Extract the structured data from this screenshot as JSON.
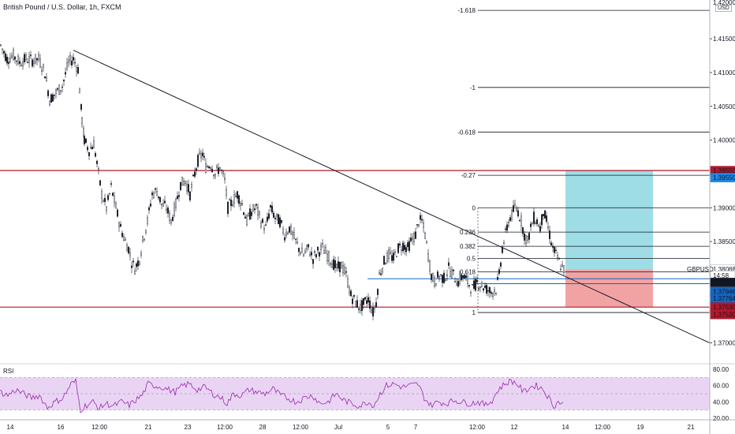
{
  "header": {
    "title": "British Pound / U.S. Dollar, 1h, FXCM",
    "currency": "USD",
    "top_price_partial": "1.42000"
  },
  "rsi": {
    "label": "RSI",
    "ticks": [
      "80.00",
      "60.00",
      "40.00",
      "20.00"
    ]
  },
  "colors": {
    "candle": "#131722",
    "support_line": "#b2182b",
    "fib_line": "#131722",
    "tp_zone": "#9fdde6",
    "sl_zone": "#f1a3a3",
    "rsi_line": "#9c27b0",
    "rsi_band": "#e9d5f3",
    "blue_level": "#1565c0"
  },
  "chart_data": {
    "type": "candlestick",
    "symbol": "GBPUSD",
    "timeframe": "1h",
    "ylim": [
      1.3675,
      1.4205
    ],
    "y_ticks": [
      "1.41500",
      "1.41000",
      "1.40500",
      "1.40000",
      "1.39500",
      "1.39000",
      "1.38500",
      "1.38000",
      "1.37500",
      "1.37000"
    ],
    "x_ticks": [
      "14",
      "16",
      "12:00",
      "21",
      "23",
      "12:00",
      "28",
      "12:00",
      "Jul",
      "5",
      "7",
      "12:00",
      "12",
      "14",
      "12:00",
      "19",
      "21"
    ],
    "fib_levels": [
      {
        "label": "-1.618",
        "price": 1.4192
      },
      {
        "label": "-1",
        "price": 1.4078
      },
      {
        "label": "-0.618",
        "price": 1.4012
      },
      {
        "label": "-0.27",
        "price": 1.3948
      },
      {
        "label": "0",
        "price": 1.39
      },
      {
        "label": "0.236",
        "price": 1.3864
      },
      {
        "label": "0.382",
        "price": 1.3843
      },
      {
        "label": "0.5",
        "price": 1.3825
      },
      {
        "label": "0.618",
        "price": 1.3805
      },
      {
        "label": "1",
        "price": 1.3745
      }
    ],
    "horizontal_levels": [
      1.3955,
      1.3753
    ],
    "blue_levels": [
      1.3795,
      1.3776
    ],
    "trendline": {
      "start": [
        "14",
        1.4133
      ],
      "end": [
        "19-21",
        1.37
      ]
    },
    "position": {
      "entry": 1.3809,
      "take_profit": 1.3955,
      "stop": 1.3753
    },
    "price_labels": [
      {
        "text": "1.39550",
        "price": 1.3955,
        "color": "#b2182b"
      },
      {
        "text": "1.39550",
        "price": 1.39445,
        "color": "#1e88e5"
      },
      {
        "text": "1.38088",
        "price": 1.3809,
        "color": "#ffffff",
        "text_color": "#131722"
      },
      {
        "text": "14:58",
        "price": 1.38,
        "color": "#ffffff",
        "text_color": "#131722"
      },
      {
        "text": "1.38085",
        "price": 1.37895,
        "color": "#131722"
      },
      {
        "text": "1.37946",
        "price": 1.3776,
        "color": "#1565c0"
      },
      {
        "text": "1.37764",
        "price": 1.3766,
        "color": "#1565c0"
      },
      {
        "text": "1.37530",
        "price": 1.3753,
        "color": "#b2182b"
      },
      {
        "text": "1.37530",
        "price": 1.3742,
        "color": "#b2182b"
      }
    ],
    "symbol_tag": {
      "text": "GBPUSD",
      "price": 1.3809
    },
    "price_path": [
      [
        0,
        1.414
      ],
      [
        8,
        1.412
      ],
      [
        16,
        1.4125
      ],
      [
        24,
        1.4115
      ],
      [
        32,
        1.412
      ],
      [
        40,
        1.4118
      ],
      [
        48,
        1.412
      ],
      [
        56,
        1.41
      ],
      [
        62,
        1.406
      ],
      [
        70,
        1.407
      ],
      [
        78,
        1.408
      ],
      [
        86,
        1.4115
      ],
      [
        92,
        1.412
      ],
      [
        98,
        1.4105
      ],
      [
        103,
        1.403
      ],
      [
        106,
        1.4
      ],
      [
        112,
        1.3985
      ],
      [
        118,
        1.3995
      ],
      [
        124,
        1.395
      ],
      [
        128,
        1.392
      ],
      [
        134,
        1.39
      ],
      [
        140,
        1.393
      ],
      [
        146,
        1.39
      ],
      [
        152,
        1.387
      ],
      [
        158,
        1.385
      ],
      [
        162,
        1.384
      ],
      [
        166,
        1.382
      ],
      [
        170,
        1.381
      ],
      [
        176,
        1.3825
      ],
      [
        180,
        1.385
      ],
      [
        186,
        1.388
      ],
      [
        192,
        1.392
      ],
      [
        198,
        1.3925
      ],
      [
        204,
        1.3905
      ],
      [
        210,
        1.39
      ],
      [
        216,
        1.388
      ],
      [
        222,
        1.3905
      ],
      [
        228,
        1.3935
      ],
      [
        234,
        1.394
      ],
      [
        240,
        1.392
      ],
      [
        246,
        1.395
      ],
      [
        250,
        1.397
      ],
      [
        256,
        1.398
      ],
      [
        260,
        1.396
      ],
      [
        266,
        1.3965
      ],
      [
        272,
        1.395
      ],
      [
        278,
        1.396
      ],
      [
        284,
        1.394
      ],
      [
        288,
        1.39
      ],
      [
        294,
        1.391
      ],
      [
        300,
        1.392
      ],
      [
        306,
        1.3905
      ],
      [
        312,
        1.388
      ],
      [
        318,
        1.3895
      ],
      [
        324,
        1.39
      ],
      [
        330,
        1.388
      ],
      [
        336,
        1.387
      ],
      [
        342,
        1.39
      ],
      [
        348,
        1.3885
      ],
      [
        354,
        1.388
      ],
      [
        360,
        1.386
      ],
      [
        366,
        1.387
      ],
      [
        372,
        1.3855
      ],
      [
        378,
        1.384
      ],
      [
        384,
        1.383
      ],
      [
        390,
        1.384
      ],
      [
        396,
        1.3825
      ],
      [
        402,
        1.3835
      ],
      [
        408,
        1.384
      ],
      [
        414,
        1.383
      ],
      [
        420,
        1.382
      ],
      [
        426,
        1.381
      ],
      [
        432,
        1.3815
      ],
      [
        438,
        1.38
      ],
      [
        444,
        1.377
      ],
      [
        450,
        1.376
      ],
      [
        456,
        1.3752
      ],
      [
        462,
        1.376
      ],
      [
        466,
        1.3765
      ],
      [
        472,
        1.3745
      ],
      [
        476,
        1.376
      ],
      [
        480,
        1.38
      ],
      [
        486,
        1.382
      ],
      [
        492,
        1.383
      ],
      [
        498,
        1.3825
      ],
      [
        504,
        1.384
      ],
      [
        510,
        1.3845
      ],
      [
        516,
        1.384
      ],
      [
        520,
        1.385
      ],
      [
        526,
        1.386
      ],
      [
        530,
        1.388
      ],
      [
        534,
        1.388
      ],
      [
        538,
        1.386
      ],
      [
        542,
        1.383
      ],
      [
        546,
        1.38
      ],
      [
        550,
        1.379
      ],
      [
        556,
        1.38
      ],
      [
        562,
        1.3795
      ],
      [
        568,
        1.381
      ],
      [
        574,
        1.38
      ],
      [
        580,
        1.379
      ],
      [
        586,
        1.38
      ],
      [
        592,
        1.379
      ],
      [
        598,
        1.378
      ],
      [
        604,
        1.379
      ],
      [
        610,
        1.3785
      ],
      [
        616,
        1.378
      ],
      [
        622,
        1.3775
      ],
      [
        628,
        1.378
      ],
      [
        632,
        1.38
      ],
      [
        636,
        1.384
      ],
      [
        640,
        1.386
      ],
      [
        644,
        1.388
      ],
      [
        648,
        1.389
      ],
      [
        652,
        1.39
      ],
      [
        656,
        1.3895
      ],
      [
        660,
        1.388
      ],
      [
        664,
        1.386
      ],
      [
        668,
        1.385
      ],
      [
        672,
        1.387
      ],
      [
        676,
        1.3885
      ],
      [
        680,
        1.388
      ],
      [
        684,
        1.387
      ],
      [
        688,
        1.3895
      ],
      [
        692,
        1.388
      ],
      [
        696,
        1.386
      ],
      [
        700,
        1.384
      ],
      [
        704,
        1.383
      ],
      [
        708,
        1.382
      ],
      [
        712,
        1.381
      ],
      [
        716,
        1.3809
      ]
    ],
    "rsi_series": [
      [
        0,
        52
      ],
      [
        10,
        48
      ],
      [
        20,
        55
      ],
      [
        30,
        50
      ],
      [
        40,
        45
      ],
      [
        50,
        48
      ],
      [
        60,
        33
      ],
      [
        70,
        40
      ],
      [
        80,
        45
      ],
      [
        90,
        62
      ],
      [
        96,
        65
      ],
      [
        102,
        30
      ],
      [
        108,
        35
      ],
      [
        118,
        40
      ],
      [
        126,
        32
      ],
      [
        134,
        38
      ],
      [
        144,
        35
      ],
      [
        154,
        40
      ],
      [
        164,
        36
      ],
      [
        172,
        42
      ],
      [
        180,
        48
      ],
      [
        188,
        62
      ],
      [
        196,
        60
      ],
      [
        206,
        58
      ],
      [
        214,
        55
      ],
      [
        222,
        52
      ],
      [
        232,
        60
      ],
      [
        240,
        62
      ],
      [
        250,
        55
      ],
      [
        260,
        58
      ],
      [
        270,
        50
      ],
      [
        280,
        45
      ],
      [
        288,
        38
      ],
      [
        296,
        50
      ],
      [
        306,
        48
      ],
      [
        316,
        55
      ],
      [
        326,
        52
      ],
      [
        336,
        50
      ],
      [
        346,
        56
      ],
      [
        356,
        48
      ],
      [
        366,
        44
      ],
      [
        376,
        40
      ],
      [
        386,
        45
      ],
      [
        396,
        48
      ],
      [
        406,
        38
      ],
      [
        416,
        40
      ],
      [
        426,
        50
      ],
      [
        436,
        42
      ],
      [
        446,
        38
      ],
      [
        456,
        35
      ],
      [
        466,
        40
      ],
      [
        474,
        36
      ],
      [
        482,
        50
      ],
      [
        490,
        60
      ],
      [
        500,
        62
      ],
      [
        510,
        58
      ],
      [
        520,
        60
      ],
      [
        530,
        62
      ],
      [
        538,
        45
      ],
      [
        546,
        36
      ],
      [
        556,
        40
      ],
      [
        566,
        38
      ],
      [
        576,
        42
      ],
      [
        586,
        40
      ],
      [
        596,
        38
      ],
      [
        606,
        40
      ],
      [
        616,
        36
      ],
      [
        624,
        42
      ],
      [
        632,
        55
      ],
      [
        640,
        62
      ],
      [
        648,
        66
      ],
      [
        656,
        62
      ],
      [
        664,
        52
      ],
      [
        672,
        58
      ],
      [
        680,
        60
      ],
      [
        688,
        56
      ],
      [
        696,
        45
      ],
      [
        702,
        35
      ],
      [
        708,
        40
      ],
      [
        716,
        38
      ]
    ]
  }
}
